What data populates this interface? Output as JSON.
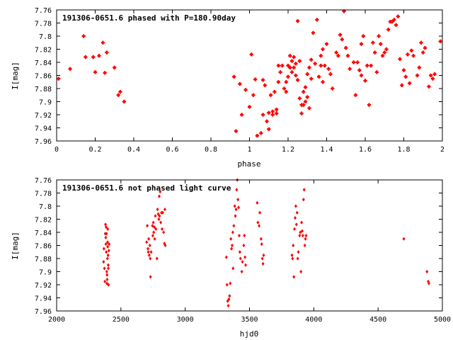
{
  "chart_data": [
    {
      "type": "scatter",
      "title": "191306-0651.6 phased with P=180.90day",
      "xlabel": "phase",
      "ylabel": "I[mag]",
      "xlim": [
        0,
        2
      ],
      "ylim": [
        7.76,
        7.96
      ],
      "y_inverted": true,
      "grid": false,
      "legend": "none",
      "marker_color": "#ff0000",
      "x_ticks": [
        "0",
        "0.2",
        "0.4",
        "0.6",
        "0.8",
        "1",
        "1.2",
        "1.4",
        "1.6",
        "1.8",
        "2"
      ],
      "y_ticks": [
        "7.76",
        "7.78",
        "7.8",
        "7.82",
        "7.84",
        "7.86",
        "7.88",
        "7.9",
        "7.92",
        "7.94",
        "7.96"
      ],
      "points": [
        [
          0.01,
          7.865
        ],
        [
          0.07,
          7.85
        ],
        [
          0.14,
          7.8
        ],
        [
          0.15,
          7.832
        ],
        [
          0.19,
          7.832
        ],
        [
          0.2,
          7.855
        ],
        [
          0.22,
          7.83
        ],
        [
          0.24,
          7.81
        ],
        [
          0.25,
          7.856
        ],
        [
          0.26,
          7.825
        ],
        [
          0.3,
          7.848
        ],
        [
          0.32,
          7.89
        ],
        [
          0.33,
          7.885
        ],
        [
          0.35,
          7.9
        ],
        [
          0.92,
          7.862
        ],
        [
          0.93,
          7.945
        ],
        [
          0.95,
          7.873
        ],
        [
          0.96,
          7.92
        ],
        [
          0.98,
          7.882
        ],
        [
          1.0,
          7.908
        ],
        [
          1.01,
          7.828
        ],
        [
          1.02,
          7.89
        ],
        [
          1.03,
          7.866
        ],
        [
          1.04,
          7.952
        ],
        [
          1.06,
          7.948
        ],
        [
          1.07,
          7.867
        ],
        [
          1.07,
          7.92
        ],
        [
          1.08,
          7.875
        ],
        [
          1.09,
          7.93
        ],
        [
          1.1,
          7.942
        ],
        [
          1.1,
          7.917
        ],
        [
          1.11,
          7.89
        ],
        [
          1.12,
          7.915
        ],
        [
          1.12,
          7.92
        ],
        [
          1.13,
          7.885
        ],
        [
          1.14,
          7.918
        ],
        [
          1.14,
          7.912
        ],
        [
          1.15,
          7.87
        ],
        [
          1.15,
          7.845
        ],
        [
          1.16,
          7.855
        ],
        [
          1.17,
          7.845
        ],
        [
          1.18,
          7.88
        ],
        [
          1.19,
          7.87
        ],
        [
          1.19,
          7.885
        ],
        [
          1.2,
          7.862
        ],
        [
          1.2,
          7.845
        ],
        [
          1.21,
          7.83
        ],
        [
          1.21,
          7.848
        ],
        [
          1.22,
          7.838
        ],
        [
          1.22,
          7.855
        ],
        [
          1.23,
          7.832
        ],
        [
          1.23,
          7.848
        ],
        [
          1.24,
          7.86
        ],
        [
          1.24,
          7.842
        ],
        [
          1.25,
          7.867
        ],
        [
          1.25,
          7.777
        ],
        [
          1.26,
          7.838
        ],
        [
          1.26,
          7.895
        ],
        [
          1.27,
          7.905
        ],
        [
          1.27,
          7.918
        ],
        [
          1.28,
          7.905
        ],
        [
          1.28,
          7.885
        ],
        [
          1.29,
          7.878
        ],
        [
          1.29,
          7.9
        ],
        [
          1.3,
          7.893
        ],
        [
          1.3,
          7.858
        ],
        [
          1.31,
          7.848
        ],
        [
          1.31,
          7.91
        ],
        [
          1.32,
          7.836
        ],
        [
          1.32,
          7.865
        ],
        [
          1.33,
          7.795
        ],
        [
          1.34,
          7.842
        ],
        [
          1.35,
          7.775
        ],
        [
          1.36,
          7.862
        ],
        [
          1.37,
          7.83
        ],
        [
          1.37,
          7.845
        ],
        [
          1.38,
          7.82
        ],
        [
          1.38,
          7.87
        ],
        [
          1.39,
          7.845
        ],
        [
          1.4,
          7.812
        ],
        [
          1.41,
          7.85
        ],
        [
          1.42,
          7.858
        ],
        [
          1.43,
          7.88
        ],
        [
          1.45,
          7.825
        ],
        [
          1.46,
          7.83
        ],
        [
          1.47,
          7.798
        ],
        [
          1.48,
          7.805
        ],
        [
          1.49,
          7.762
        ],
        [
          1.5,
          7.818
        ],
        [
          1.51,
          7.83
        ],
        [
          1.52,
          7.85
        ],
        [
          1.54,
          7.84
        ],
        [
          1.55,
          7.89
        ],
        [
          1.56,
          7.84
        ],
        [
          1.57,
          7.852
        ],
        [
          1.58,
          7.812
        ],
        [
          1.58,
          7.86
        ],
        [
          1.59,
          7.8
        ],
        [
          1.6,
          7.868
        ],
        [
          1.61,
          7.845
        ],
        [
          1.62,
          7.905
        ],
        [
          1.63,
          7.845
        ],
        [
          1.64,
          7.81
        ],
        [
          1.65,
          7.825
        ],
        [
          1.66,
          7.855
        ],
        [
          1.67,
          7.8
        ],
        [
          1.68,
          7.812
        ],
        [
          1.69,
          7.83
        ],
        [
          1.7,
          7.825
        ],
        [
          1.71,
          7.82
        ],
        [
          1.72,
          7.79
        ],
        [
          1.73,
          7.778
        ],
        [
          1.74,
          7.778
        ],
        [
          1.75,
          7.775
        ],
        [
          1.76,
          7.783
        ],
        [
          1.77,
          7.77
        ],
        [
          1.78,
          7.835
        ],
        [
          1.79,
          7.875
        ],
        [
          1.8,
          7.852
        ],
        [
          1.81,
          7.862
        ],
        [
          1.82,
          7.828
        ],
        [
          1.83,
          7.872
        ],
        [
          1.84,
          7.822
        ],
        [
          1.85,
          7.83
        ],
        [
          1.87,
          7.86
        ],
        [
          1.88,
          7.848
        ],
        [
          1.89,
          7.81
        ],
        [
          1.9,
          7.825
        ],
        [
          1.91,
          7.818
        ],
        [
          1.93,
          7.877
        ],
        [
          1.94,
          7.86
        ],
        [
          1.95,
          7.865
        ],
        [
          1.96,
          7.858
        ],
        [
          1.99,
          7.808
        ]
      ]
    },
    {
      "type": "scatter",
      "title": "191306-0651.6 not phased light curve",
      "xlabel": "hjd0",
      "ylabel": "I[mag]",
      "xlim": [
        2000,
        5000
      ],
      "ylim": [
        7.76,
        7.96
      ],
      "y_inverted": true,
      "grid": false,
      "legend": "none",
      "marker_color": "#ff0000",
      "x_ticks": [
        "2000",
        "2500",
        "3000",
        "3500",
        "4000",
        "4500",
        "5000"
      ],
      "y_ticks": [
        "7.76",
        "7.78",
        "7.8",
        "7.82",
        "7.84",
        "7.86",
        "7.88",
        "7.9",
        "7.92",
        "7.94",
        "7.96"
      ],
      "points": [
        [
          2365,
          7.885
        ],
        [
          2368,
          7.865
        ],
        [
          2372,
          7.895
        ],
        [
          2375,
          7.915
        ],
        [
          2378,
          7.842
        ],
        [
          2380,
          7.828
        ],
        [
          2382,
          7.848
        ],
        [
          2383,
          7.858
        ],
        [
          2385,
          7.832
        ],
        [
          2386,
          7.87
        ],
        [
          2388,
          7.842
        ],
        [
          2390,
          7.9
        ],
        [
          2391,
          7.918
        ],
        [
          2392,
          7.905
        ],
        [
          2393,
          7.912
        ],
        [
          2395,
          7.88
        ],
        [
          2396,
          7.855
        ],
        [
          2397,
          7.862
        ],
        [
          2398,
          7.835
        ],
        [
          2400,
          7.875
        ],
        [
          2401,
          7.89
        ],
        [
          2402,
          7.895
        ],
        [
          2404,
          7.92
        ],
        [
          2406,
          7.868
        ],
        [
          2408,
          7.858
        ],
        [
          2700,
          7.855
        ],
        [
          2705,
          7.83
        ],
        [
          2710,
          7.865
        ],
        [
          2713,
          7.87
        ],
        [
          2716,
          7.85
        ],
        [
          2720,
          7.875
        ],
        [
          2725,
          7.86
        ],
        [
          2728,
          7.88
        ],
        [
          2730,
          7.908
        ],
        [
          2735,
          7.87
        ],
        [
          2745,
          7.83
        ],
        [
          2748,
          7.845
        ],
        [
          2752,
          7.825
        ],
        [
          2755,
          7.84
        ],
        [
          2760,
          7.832
        ],
        [
          2763,
          7.85
        ],
        [
          2768,
          7.815
        ],
        [
          2772,
          7.835
        ],
        [
          2780,
          7.88
        ],
        [
          2785,
          7.805
        ],
        [
          2790,
          7.812
        ],
        [
          2795,
          7.82
        ],
        [
          2798,
          7.785
        ],
        [
          2800,
          7.815
        ],
        [
          2805,
          7.778
        ],
        [
          2810,
          7.825
        ],
        [
          2815,
          7.81
        ],
        [
          2820,
          7.835
        ],
        [
          2825,
          7.81
        ],
        [
          2832,
          7.84
        ],
        [
          2838,
          7.857
        ],
        [
          2842,
          7.805
        ],
        [
          2845,
          7.86
        ],
        [
          3320,
          7.878
        ],
        [
          3325,
          7.92
        ],
        [
          3330,
          7.945
        ],
        [
          3335,
          7.952
        ],
        [
          3340,
          7.942
        ],
        [
          3345,
          7.937
        ],
        [
          3350,
          7.918
        ],
        [
          3355,
          7.85
        ],
        [
          3360,
          7.865
        ],
        [
          3365,
          7.86
        ],
        [
          3370,
          7.84
        ],
        [
          3372,
          7.895
        ],
        [
          3378,
          7.83
        ],
        [
          3385,
          7.8
        ],
        [
          3390,
          7.815
        ],
        [
          3395,
          7.805
        ],
        [
          3400,
          7.775
        ],
        [
          3405,
          7.76
        ],
        [
          3410,
          7.79
        ],
        [
          3415,
          7.802
        ],
        [
          3420,
          7.845
        ],
        [
          3425,
          7.87
        ],
        [
          3430,
          7.88
        ],
        [
          3440,
          7.9
        ],
        [
          3445,
          7.885
        ],
        [
          3455,
          7.86
        ],
        [
          3460,
          7.845
        ],
        [
          3465,
          7.878
        ],
        [
          3470,
          7.89
        ],
        [
          3560,
          7.795
        ],
        [
          3565,
          7.825
        ],
        [
          3575,
          7.83
        ],
        [
          3580,
          7.81
        ],
        [
          3590,
          7.85
        ],
        [
          3595,
          7.858
        ],
        [
          3600,
          7.88
        ],
        [
          3605,
          7.888
        ],
        [
          3610,
          7.875
        ],
        [
          3830,
          7.875
        ],
        [
          3835,
          7.88
        ],
        [
          3840,
          7.86
        ],
        [
          3845,
          7.908
        ],
        [
          3850,
          7.835
        ],
        [
          3855,
          7.818
        ],
        [
          3860,
          7.8
        ],
        [
          3865,
          7.828
        ],
        [
          3870,
          7.81
        ],
        [
          3875,
          7.88
        ],
        [
          3880,
          7.87
        ],
        [
          3890,
          7.845
        ],
        [
          3895,
          7.84
        ],
        [
          3900,
          7.9
        ],
        [
          3905,
          7.825
        ],
        [
          3910,
          7.838
        ],
        [
          3915,
          7.845
        ],
        [
          3920,
          7.79
        ],
        [
          3925,
          7.775
        ],
        [
          3930,
          7.86
        ],
        [
          3935,
          7.85
        ],
        [
          3940,
          7.845
        ],
        [
          4700,
          7.85
        ],
        [
          4880,
          7.9
        ],
        [
          4890,
          7.915
        ],
        [
          4895,
          7.918
        ]
      ]
    }
  ]
}
